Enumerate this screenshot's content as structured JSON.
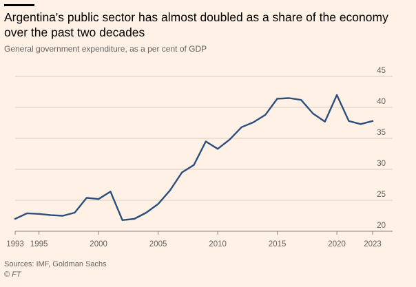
{
  "header": {
    "title": "Argentina's public sector has almost doubled as a share of the economy over the past two decades",
    "subtitle": "General government expenditure, as a per cent of GDP"
  },
  "footer": {
    "sources": "Sources: IMF, Goldman Sachs",
    "credit": "© FT"
  },
  "colors": {
    "background": "#fff1e5",
    "line": "#2b4e7d",
    "grid": "#d8cbbd",
    "text_muted": "#66605c"
  },
  "chart_data": {
    "type": "line",
    "title": "Argentina's public sector has almost doubled as a share of the economy over the past two decades",
    "subtitle": "General government expenditure, as a per cent of GDP",
    "xlabel": "",
    "ylabel": "",
    "xlim": [
      1993,
      2023
    ],
    "ylim": [
      20,
      45
    ],
    "y_ticks": [
      20,
      25,
      30,
      35,
      40,
      45
    ],
    "x_ticks": [
      1993,
      1995,
      2000,
      2005,
      2010,
      2015,
      2020,
      2023
    ],
    "grid": true,
    "series": [
      {
        "name": "General government expenditure (% of GDP)",
        "x": [
          1993,
          1994,
          1995,
          1996,
          1997,
          1998,
          1999,
          2000,
          2001,
          2002,
          2003,
          2004,
          2005,
          2006,
          2007,
          2008,
          2009,
          2010,
          2011,
          2012,
          2013,
          2014,
          2015,
          2016,
          2017,
          2018,
          2019,
          2020,
          2021,
          2022,
          2023
        ],
        "values": [
          22.0,
          22.9,
          22.8,
          22.6,
          22.5,
          23.0,
          25.4,
          25.2,
          26.4,
          21.8,
          22.0,
          23.0,
          24.4,
          26.6,
          29.5,
          30.7,
          34.5,
          33.3,
          34.8,
          36.8,
          37.6,
          38.8,
          41.4,
          41.5,
          41.2,
          39.0,
          37.7,
          42.0,
          37.8,
          37.3,
          37.8
        ]
      }
    ]
  }
}
